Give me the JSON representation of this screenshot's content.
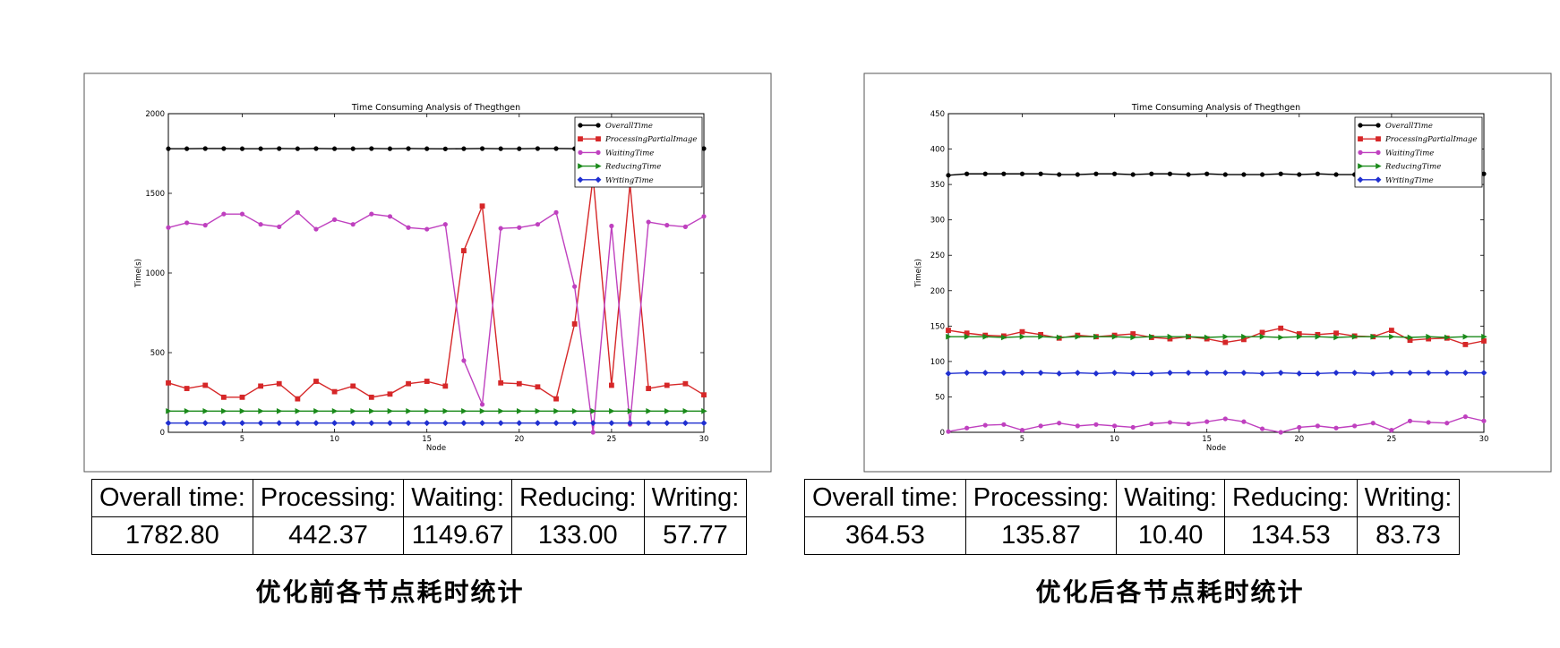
{
  "panels": [
    {
      "caption": "优化前各节点耗时统计",
      "stats": {
        "headers": [
          "Overall time:",
          "Processing:",
          "Waiting:",
          "Reducing:",
          "Writing:"
        ],
        "values": [
          "1782.80",
          "442.37",
          "1149.67",
          "133.00",
          "57.77"
        ]
      }
    },
    {
      "caption": "优化后各节点耗时统计",
      "stats": {
        "headers": [
          "Overall time:",
          "Processing:",
          "Waiting:",
          "Reducing:",
          "Writing:"
        ],
        "values": [
          "364.53",
          "135.87",
          "10.40",
          "134.53",
          "83.73"
        ]
      }
    }
  ],
  "chart_data": [
    {
      "type": "line",
      "title": "Time Consuming Analysis of Thegthgen",
      "xlabel": "Node",
      "ylabel": "Time(s)",
      "xlim": [
        1,
        30
      ],
      "ylim": [
        0,
        2000
      ],
      "xticks": [
        5,
        10,
        15,
        20,
        25,
        30
      ],
      "yticks": [
        0,
        500,
        1000,
        1500,
        2000
      ],
      "legend_position": "top-right",
      "x": [
        1,
        2,
        3,
        4,
        5,
        6,
        7,
        8,
        9,
        10,
        11,
        12,
        13,
        14,
        15,
        16,
        17,
        18,
        19,
        20,
        21,
        22,
        23,
        24,
        25,
        26,
        27,
        28,
        29,
        30
      ],
      "series": [
        {
          "name": "OverallTime",
          "color": "#000000",
          "marker": "circle",
          "values": [
            1780,
            1780,
            1781,
            1781,
            1780,
            1780,
            1781,
            1780,
            1781,
            1780,
            1780,
            1781,
            1780,
            1781,
            1780,
            1779,
            1780,
            1781,
            1780,
            1780,
            1781,
            1781,
            1780,
            1781,
            1780,
            1781,
            1780,
            1781,
            1780,
            1781
          ]
        },
        {
          "name": "ProcessingPartialImage",
          "color": "#d62728",
          "marker": "square",
          "values": [
            310,
            275,
            295,
            220,
            220,
            290,
            305,
            210,
            320,
            255,
            290,
            220,
            240,
            305,
            320,
            290,
            1140,
            1420,
            310,
            305,
            285,
            210,
            680,
            1600,
            295,
            1560,
            275,
            295,
            305,
            235
          ]
        },
        {
          "name": "WaitingTime",
          "color": "#bf40bf",
          "marker": "circle",
          "values": [
            1285,
            1315,
            1300,
            1370,
            1370,
            1305,
            1290,
            1380,
            1275,
            1335,
            1305,
            1370,
            1355,
            1285,
            1275,
            1305,
            450,
            175,
            1280,
            1285,
            1305,
            1380,
            915,
            0,
            1295,
            50,
            1320,
            1300,
            1290,
            1355
          ]
        },
        {
          "name": "ReducingTime",
          "color": "#1a8a1a",
          "marker": "triangle",
          "values": [
            133,
            133,
            133,
            133,
            133,
            133,
            133,
            133,
            133,
            133,
            133,
            133,
            133,
            133,
            133,
            133,
            133,
            133,
            133,
            133,
            133,
            133,
            133,
            133,
            133,
            133,
            133,
            133,
            133,
            133
          ]
        },
        {
          "name": "WritingTime",
          "color": "#1f2fd0",
          "marker": "diamond",
          "values": [
            58,
            58,
            58,
            58,
            58,
            58,
            58,
            58,
            58,
            58,
            58,
            58,
            58,
            58,
            58,
            58,
            58,
            58,
            58,
            58,
            58,
            58,
            58,
            58,
            58,
            58,
            58,
            58,
            58,
            58
          ]
        }
      ]
    },
    {
      "type": "line",
      "title": "Time Consuming Analysis of Thegthgen",
      "xlabel": "Node",
      "ylabel": "Time(s)",
      "xlim": [
        1,
        30
      ],
      "ylim": [
        0,
        450
      ],
      "xticks": [
        5,
        10,
        15,
        20,
        25,
        30
      ],
      "yticks": [
        0,
        50,
        100,
        150,
        200,
        250,
        300,
        350,
        400,
        450
      ],
      "legend_position": "top-right",
      "x": [
        1,
        2,
        3,
        4,
        5,
        6,
        7,
        8,
        9,
        10,
        11,
        12,
        13,
        14,
        15,
        16,
        17,
        18,
        19,
        20,
        21,
        22,
        23,
        24,
        25,
        26,
        27,
        28,
        29,
        30
      ],
      "series": [
        {
          "name": "OverallTime",
          "color": "#000000",
          "marker": "circle",
          "values": [
            363,
            365,
            365,
            365,
            365,
            365,
            364,
            364,
            365,
            365,
            364,
            365,
            365,
            364,
            365,
            364,
            364,
            364,
            365,
            364,
            365,
            364,
            364,
            365,
            364,
            365,
            364,
            365,
            364,
            365
          ]
        },
        {
          "name": "ProcessingPartialImage",
          "color": "#d62728",
          "marker": "square",
          "values": [
            144,
            140,
            137,
            136,
            142,
            138,
            133,
            137,
            135,
            137,
            139,
            134,
            132,
            135,
            132,
            127,
            131,
            141,
            147,
            139,
            138,
            140,
            136,
            135,
            144,
            130,
            132,
            133,
            124,
            129
          ]
        },
        {
          "name": "WaitingTime",
          "color": "#bf40bf",
          "marker": "circle",
          "values": [
            1,
            6,
            10,
            11,
            3,
            9,
            13,
            9,
            11,
            9,
            7,
            12,
            14,
            12,
            15,
            19,
            15,
            5,
            0,
            7,
            9,
            6,
            9,
            13,
            3,
            16,
            14,
            13,
            22,
            16
          ]
        },
        {
          "name": "ReducingTime",
          "color": "#1a8a1a",
          "marker": "triangle",
          "values": [
            135,
            135,
            135,
            134,
            135,
            135,
            134,
            135,
            135,
            135,
            134,
            135,
            135,
            135,
            134,
            135,
            135,
            135,
            134,
            135,
            135,
            134,
            135,
            135,
            135,
            134,
            135,
            134,
            135,
            135
          ]
        },
        {
          "name": "WritingTime",
          "color": "#1f2fd0",
          "marker": "diamond",
          "values": [
            83,
            84,
            84,
            84,
            84,
            84,
            83,
            84,
            83,
            84,
            83,
            83,
            84,
            84,
            84,
            84,
            84,
            83,
            84,
            83,
            83,
            84,
            84,
            83,
            84,
            84,
            84,
            84,
            84,
            84
          ]
        }
      ]
    }
  ]
}
